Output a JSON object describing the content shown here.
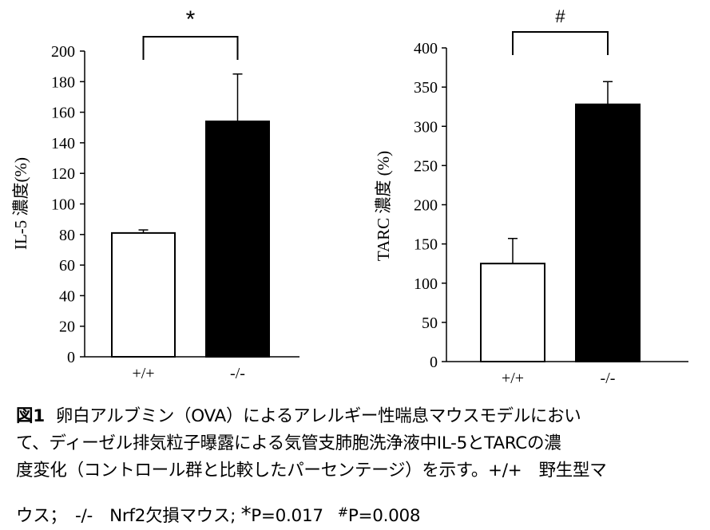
{
  "chart_data": [
    {
      "type": "bar",
      "categories": [
        "+/+",
        "-/-"
      ],
      "values": [
        81,
        154
      ],
      "errors": [
        2,
        31
      ],
      "bar_colors": [
        "#ffffff",
        "#000000"
      ],
      "ylabel": "IL-5 濃度(%)",
      "ylim": [
        0,
        200
      ],
      "yticks": [
        0,
        20,
        40,
        60,
        80,
        100,
        120,
        140,
        160,
        180,
        200
      ],
      "significance": "*"
    },
    {
      "type": "bar",
      "categories": [
        "+/+",
        "-/-"
      ],
      "values": [
        125,
        328
      ],
      "errors": [
        32,
        29
      ],
      "bar_colors": [
        "#ffffff",
        "#000000"
      ],
      "ylabel": "TARC 濃度 (%)",
      "ylim": [
        0,
        400
      ],
      "yticks": [
        0,
        50,
        100,
        150,
        200,
        250,
        300,
        350,
        400
      ],
      "significance": "#"
    }
  ],
  "caption": {
    "fig_label": "図1",
    "line1": "卵白アルブミン（OVA）によるアレルギー性喘息マウスモデルにおい",
    "line2": "て、ディーゼル排気粒子曝露による気管支肺胞洗浄液中IL-5とTARCの濃",
    "line3": "度変化（コントロール群と比較したパーセンテージ）を示す。+/+　野生型マ",
    "line4_a": "ウス；　-/-　Nrf2欠損マウス; ",
    "p1_symbol": "*",
    "p1_text": "P=0.017",
    "p2_symbol": "#",
    "p2_text": "P=0.008"
  }
}
